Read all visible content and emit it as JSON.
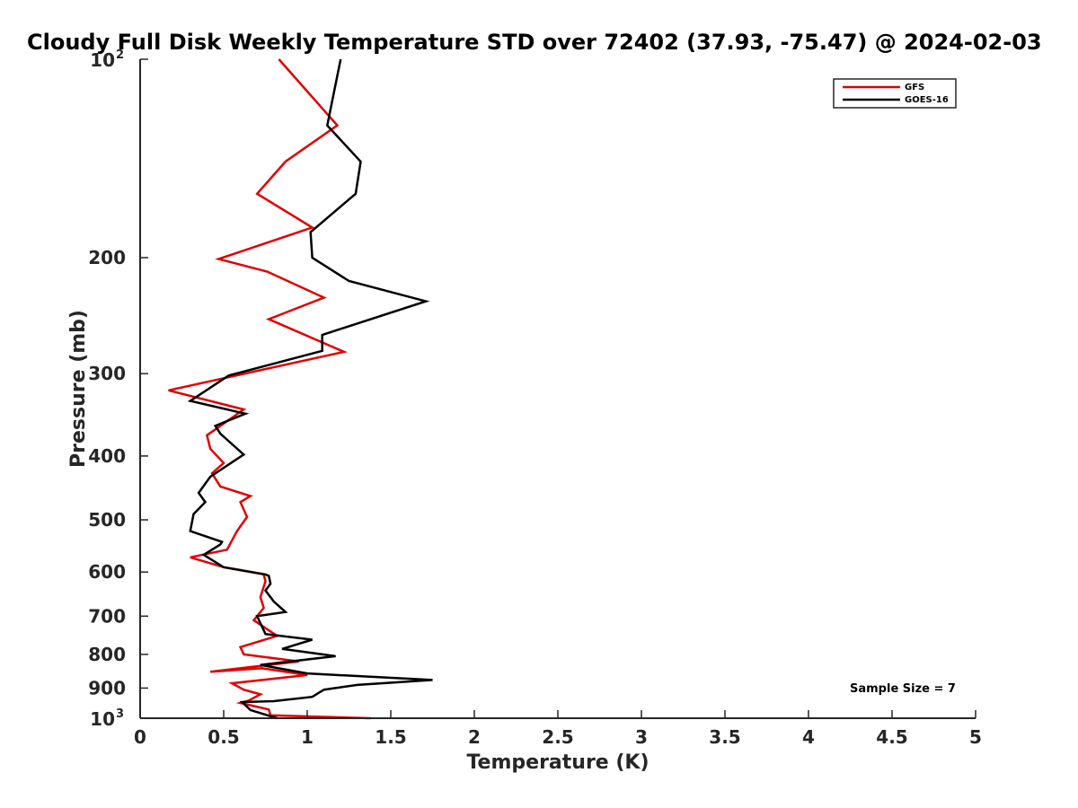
{
  "chart_data": {
    "type": "line",
    "title": "Cloudy Full Disk Weekly Temperature STD over 72402 (37.93, -75.47) @ 2024-02-03",
    "xlabel": "Temperature (K)",
    "ylabel": "Pressure (mb)",
    "xlim": [
      0,
      5
    ],
    "ylim": [
      100,
      1000
    ],
    "y_scale": "log",
    "y_reversed": true,
    "grid": false,
    "legend_position": "top-right",
    "x_ticks": [
      "0",
      "0.5",
      "1",
      "1.5",
      "2",
      "2.5",
      "3",
      "3.5",
      "4",
      "4.5",
      "5"
    ],
    "y_ticks": [
      {
        "value": 100,
        "label": "10",
        "sup": "2"
      },
      {
        "value": 200,
        "label": "200"
      },
      {
        "value": 300,
        "label": "300"
      },
      {
        "value": 400,
        "label": "400"
      },
      {
        "value": 500,
        "label": "500"
      },
      {
        "value": 600,
        "label": "600"
      },
      {
        "value": 700,
        "label": "700"
      },
      {
        "value": 800,
        "label": "800"
      },
      {
        "value": 900,
        "label": "900"
      },
      {
        "value": 1000,
        "label": "10",
        "sup": "3"
      }
    ],
    "annotation": "Sample Size = 7",
    "series": [
      {
        "name": "GFS",
        "color": "#e00000",
        "x": [
          1.38,
          0.78,
          0.77,
          0.6,
          0.65,
          0.72,
          0.62,
          0.55,
          1.0,
          0.73,
          0.42,
          0.95,
          0.62,
          0.6,
          0.82,
          0.68,
          0.74,
          0.72,
          0.75,
          0.74,
          0.5,
          0.3,
          0.52,
          0.58,
          0.64,
          0.6,
          0.66,
          0.48,
          0.43,
          0.5,
          0.42,
          0.4,
          0.62,
          0.17,
          1.22,
          0.77,
          1.1,
          0.76,
          0.47,
          1.03,
          0.7,
          0.87,
          1.18,
          0.83
        ],
        "y": [
          1000,
          990,
          970,
          948,
          940,
          920,
          905,
          885,
          860,
          840,
          850,
          820,
          800,
          780,
          750,
          710,
          680,
          655,
          620,
          605,
          590,
          570,
          555,
          520,
          495,
          470,
          460,
          445,
          425,
          410,
          390,
          372,
          340,
          318,
          278,
          248,
          230,
          210,
          201,
          180,
          160,
          143,
          126,
          100
        ]
      },
      {
        "name": "GOES-16",
        "color": "#000000",
        "x": [
          0.82,
          0.66,
          0.61,
          0.8,
          1.03,
          1.1,
          1.3,
          1.75,
          1.0,
          0.72,
          1.17,
          0.85,
          1.03,
          0.75,
          0.7,
          0.87,
          0.8,
          0.75,
          0.78,
          0.77,
          0.75,
          0.5,
          0.38,
          0.48,
          0.49,
          0.3,
          0.32,
          0.39,
          0.35,
          0.42,
          0.62,
          0.48,
          0.45,
          0.63,
          0.3,
          0.53,
          1.09,
          1.09,
          1.71,
          1.25,
          1.03,
          1.02,
          1.29,
          1.32,
          1.12,
          1.2
        ],
        "y": [
          1000,
          972,
          945,
          942,
          928,
          905,
          890,
          875,
          855,
          830,
          805,
          785,
          760,
          745,
          700,
          690,
          665,
          640,
          625,
          608,
          605,
          590,
          565,
          545,
          540,
          520,
          490,
          470,
          455,
          430,
          398,
          370,
          360,
          345,
          330,
          302,
          277,
          262,
          233,
          217,
          200,
          183,
          160,
          143,
          126,
          100
        ]
      }
    ]
  }
}
